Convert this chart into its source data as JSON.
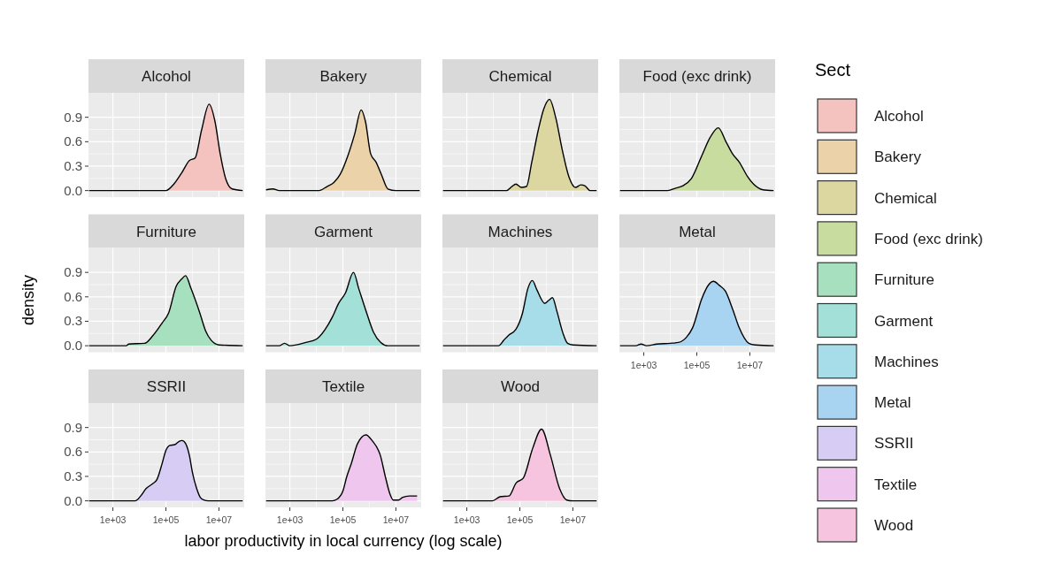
{
  "chart_data": [
    {
      "type": "area",
      "title": "Alcohol",
      "x": [
        126,
        100000,
        200000,
        398000,
        776000,
        1260000,
        2240000,
        4270000,
        7080000,
        11200000,
        17800000,
        31600000,
        79400000
      ],
      "series": [
        {
          "name": "Alcohol",
          "color": "#f4c3c0",
          "values": [
            0,
            0,
            0.08,
            0.22,
            0.37,
            0.4,
            0.75,
            1.06,
            0.85,
            0.45,
            0.15,
            0.02,
            0
          ]
        }
      ],
      "xlim": [
        120,
        90000000
      ],
      "ylim": [
        -0.08,
        1.2
      ],
      "xticks": [
        {
          "value": 1000,
          "label": null
        },
        {
          "value": 100000,
          "label": null
        },
        {
          "value": 10000000,
          "label": null
        }
      ],
      "yticks": [
        {
          "value": 0,
          "label": "0.0"
        },
        0.3,
        0.6,
        0.9
      ],
      "log": "x",
      "grid": true,
      "tick_labels": "y",
      "legend": "right",
      "legend_title": "Sect"
    },
    {
      "type": "area",
      "title": "Bakery",
      "x": [
        126,
        229,
        398,
        12600,
        25100,
        45700,
        79400,
        155000,
        282000,
        490000,
        708000,
        1120000,
        1780000,
        2820000,
        5010000,
        10000000,
        79400000
      ],
      "series": [
        {
          "name": "Bakery",
          "color": "#ecd2a8",
          "values": [
            0.01,
            0.02,
            0,
            0,
            0.05,
            0.1,
            0.2,
            0.43,
            0.7,
            0.99,
            0.85,
            0.45,
            0.35,
            0.2,
            0.02,
            0,
            0
          ]
        }
      ],
      "xlim": [
        120,
        90000000
      ],
      "ylim": [
        -0.08,
        1.2
      ],
      "xticks": [
        {
          "value": 1000,
          "label": null
        },
        {
          "value": 100000,
          "label": null
        },
        {
          "value": 10000000,
          "label": null
        }
      ],
      "yticks": [
        {
          "value": 0,
          "label": null
        },
        {
          "value": 0.3,
          "label": null
        },
        {
          "value": 0.6,
          "label": null
        },
        {
          "value": 0.9,
          "label": null
        }
      ],
      "log": "x",
      "grid": true,
      "tick_labels": false,
      "legend": "right"
    },
    {
      "type": "area",
      "title": "Chemical",
      "x": [
        126,
        31600,
        50100,
        70800,
        112000,
        178000,
        282000,
        501000,
        794000,
        1320000,
        2240000,
        3980000,
        7080000,
        12600000,
        20000000,
        28200000,
        44700000,
        79400000
      ],
      "series": [
        {
          "name": "Chemical",
          "color": "#dcd6a0",
          "values": [
            0,
            0,
            0.05,
            0.08,
            0.04,
            0.05,
            0.35,
            0.75,
            1.0,
            1.12,
            0.9,
            0.5,
            0.17,
            0.04,
            0.07,
            0.06,
            0,
            0
          ]
        }
      ],
      "xlim": [
        120,
        90000000
      ],
      "ylim": [
        -0.08,
        1.2
      ],
      "xticks": [
        {
          "value": 1000,
          "label": null
        },
        {
          "value": 100000,
          "label": null
        },
        {
          "value": 10000000,
          "label": null
        }
      ],
      "yticks": [
        {
          "value": 0,
          "label": null
        },
        {
          "value": 0.3,
          "label": null
        },
        {
          "value": 0.6,
          "label": null
        },
        {
          "value": 0.9,
          "label": null
        }
      ],
      "log": "x",
      "grid": true,
      "tick_labels": false,
      "legend": "right"
    },
    {
      "type": "area",
      "title": "Food (exc drink)",
      "x": [
        126,
        7940,
        15800,
        30200,
        63100,
        155000,
        316000,
        646000,
        1260000,
        2240000,
        3980000,
        7940000,
        13800000,
        31600000,
        79400000
      ],
      "series": [
        {
          "name": "Food (exc drink)",
          "color": "#c8dca0",
          "values": [
            0,
            0,
            0.03,
            0.06,
            0.15,
            0.43,
            0.65,
            0.77,
            0.6,
            0.45,
            0.35,
            0.18,
            0.08,
            0.01,
            0
          ]
        }
      ],
      "xlim": [
        120,
        90000000
      ],
      "ylim": [
        -0.08,
        1.2
      ],
      "xticks": [
        {
          "value": 1000,
          "label": null
        },
        {
          "value": 100000,
          "label": null
        },
        {
          "value": 10000000,
          "label": null
        }
      ],
      "yticks": [
        {
          "value": 0,
          "label": null
        },
        {
          "value": 0.3,
          "label": null
        },
        {
          "value": 0.6,
          "label": null
        },
        {
          "value": 0.9,
          "label": null
        }
      ],
      "log": "x",
      "grid": true,
      "tick_labels": false,
      "legend": "right"
    },
    {
      "type": "area",
      "title": "Furniture",
      "ylabel": "density",
      "x": [
        126,
        3160,
        3980,
        15800,
        31600,
        72400,
        126000,
        245000,
        398000,
        550000,
        891000,
        1910000,
        3160000,
        5010000,
        10000000,
        79400000
      ],
      "series": [
        {
          "name": "Furniture",
          "color": "#a7e0bf",
          "values": [
            0,
            0,
            0.02,
            0.03,
            0.12,
            0.28,
            0.4,
            0.73,
            0.82,
            0.86,
            0.7,
            0.4,
            0.18,
            0.07,
            0.01,
            0
          ]
        }
      ],
      "xlim": [
        120,
        90000000
      ],
      "ylim": [
        -0.08,
        1.2
      ],
      "xticks": [
        {
          "value": 1000,
          "label": null
        },
        {
          "value": 100000,
          "label": null
        },
        {
          "value": 10000000,
          "label": null
        }
      ],
      "yticks": [
        {
          "value": 0,
          "label": "0.0"
        },
        0.3,
        0.6,
        0.9
      ],
      "log": "x",
      "grid": true,
      "tick_labels": "y",
      "legend": "right"
    },
    {
      "type": "area",
      "title": "Garment",
      "x": [
        126,
        398,
        631,
        1000,
        3980,
        10000,
        20400,
        39800,
        69200,
        126000,
        251000,
        398000,
        794000,
        1410000,
        2690000,
        5010000,
        79400000
      ],
      "series": [
        {
          "name": "Garment",
          "color": "#a3e0d7",
          "values": [
            0,
            0,
            0.03,
            0,
            0.04,
            0.08,
            0.19,
            0.35,
            0.52,
            0.65,
            0.9,
            0.7,
            0.4,
            0.17,
            0.04,
            0,
            0
          ]
        }
      ],
      "xlim": [
        120,
        90000000
      ],
      "ylim": [
        -0.08,
        1.2
      ],
      "xticks": [
        {
          "value": 1000,
          "label": null
        },
        {
          "value": 100000,
          "label": null
        },
        {
          "value": 10000000,
          "label": null
        }
      ],
      "yticks": [
        {
          "value": 0,
          "label": null
        },
        {
          "value": 0.3,
          "label": null
        },
        {
          "value": 0.6,
          "label": null
        },
        {
          "value": 0.9,
          "label": null
        }
      ],
      "log": "x",
      "grid": true,
      "tick_labels": false,
      "legend": "right"
    },
    {
      "type": "area",
      "title": "Machines",
      "x": [
        126,
        15800,
        25100,
        38000,
        70800,
        126000,
        200000,
        295000,
        447000,
        871000,
        1260000,
        1700000,
        2510000,
        4170000,
        6310000,
        10000000,
        79400000
      ],
      "series": [
        {
          "name": "Machines",
          "color": "#a6dde8",
          "values": [
            0,
            0,
            0.07,
            0.13,
            0.2,
            0.4,
            0.7,
            0.8,
            0.68,
            0.52,
            0.56,
            0.59,
            0.42,
            0.16,
            0.03,
            0.01,
            0
          ]
        }
      ],
      "xlim": [
        120,
        90000000
      ],
      "ylim": [
        -0.08,
        1.2
      ],
      "xticks": [
        {
          "value": 1000,
          "label": null
        },
        {
          "value": 100000,
          "label": null
        },
        {
          "value": 10000000,
          "label": null
        }
      ],
      "yticks": [
        {
          "value": 0,
          "label": null
        },
        {
          "value": 0.3,
          "label": null
        },
        {
          "value": 0.6,
          "label": null
        },
        {
          "value": 0.9,
          "label": null
        }
      ],
      "log": "x",
      "grid": true,
      "tick_labels": false,
      "legend": "right"
    },
    {
      "type": "area",
      "title": "Metal",
      "x": [
        126,
        501,
        794,
        1260,
        3160,
        10000,
        20400,
        39800,
        69200,
        155000,
        282000,
        427000,
        708000,
        1200000,
        2240000,
        3980000,
        9120000,
        15800000,
        79400000
      ],
      "series": [
        {
          "name": "Metal",
          "color": "#a8d4f2",
          "values": [
            0,
            0,
            0.02,
            0,
            0.02,
            0.03,
            0.04,
            0.1,
            0.22,
            0.58,
            0.75,
            0.79,
            0.74,
            0.67,
            0.45,
            0.22,
            0.03,
            0.01,
            0
          ]
        }
      ],
      "xlim": [
        120,
        90000000
      ],
      "ylim": [
        -0.08,
        1.2
      ],
      "xticks": [
        {
          "value": 1000,
          "label": "1e+03"
        },
        {
          "value": 100000,
          "label": "1e+05"
        },
        {
          "value": 10000000,
          "label": "1e+07"
        }
      ],
      "yticks": [
        {
          "value": 0,
          "label": null
        },
        {
          "value": 0.3,
          "label": null
        },
        {
          "value": 0.6,
          "label": null
        },
        {
          "value": 0.9,
          "label": null
        }
      ],
      "log": "x",
      "grid": true,
      "tick_labels": "x",
      "legend": "right"
    },
    {
      "type": "area",
      "title": "SSRII",
      "x": [
        126,
        6920,
        11200,
        17800,
        31600,
        45700,
        70800,
        100000,
        141000,
        219000,
        316000,
        407000,
        562000,
        776000,
        1000000,
        1450000,
        2000000,
        2690000,
        3980000,
        79400000
      ],
      "series": [
        {
          "name": "SSRII",
          "color": "#d7ccf4",
          "values": [
            0,
            0,
            0.06,
            0.15,
            0.21,
            0.26,
            0.45,
            0.62,
            0.68,
            0.69,
            0.73,
            0.74,
            0.7,
            0.55,
            0.35,
            0.15,
            0.04,
            0.01,
            0,
            0
          ]
        }
      ],
      "xlim": [
        120,
        90000000
      ],
      "ylim": [
        -0.08,
        1.2
      ],
      "xticks": [
        {
          "value": 1000,
          "label": "1e+03"
        },
        {
          "value": 100000,
          "label": "1e+05"
        },
        {
          "value": 10000000,
          "label": "1e+07"
        }
      ],
      "yticks": [
        {
          "value": 0,
          "label": "0.0"
        },
        0.3,
        0.6,
        0.9
      ],
      "log": "x",
      "grid": true,
      "legend": "right"
    },
    {
      "type": "area",
      "title": "Textile",
      "xlabel": "labor productivity in local currency (log scale)",
      "x": [
        126,
        39800,
        60300,
        100000,
        141000,
        209000,
        355000,
        741000,
        1260000,
        2630000,
        3980000,
        6030000,
        7940000,
        12600000,
        17400000,
        32400000,
        63100000
      ],
      "series": [
        {
          "name": "Textile",
          "color": "#efc6ee",
          "values": [
            0,
            0,
            0.02,
            0.12,
            0.3,
            0.46,
            0.7,
            0.81,
            0.74,
            0.55,
            0.3,
            0.08,
            0.01,
            0.01,
            0.04,
            0.06,
            0.06
          ]
        }
      ],
      "xlim": [
        120,
        90000000
      ],
      "ylim": [
        -0.08,
        1.2
      ],
      "xticks": [
        {
          "value": 1000,
          "label": "1e+03"
        },
        {
          "value": 100000,
          "label": "1e+05"
        },
        {
          "value": 10000000,
          "label": "1e+07"
        }
      ],
      "yticks": [
        {
          "value": 0,
          "label": null
        },
        {
          "value": 0.3,
          "label": null
        },
        {
          "value": 0.6,
          "label": null
        },
        {
          "value": 0.9,
          "label": null
        }
      ],
      "log": "x",
      "grid": true,
      "tick_labels": "x",
      "legend": "right"
    },
    {
      "type": "area",
      "title": "Wood",
      "x": [
        126,
        9330,
        17800,
        38900,
        72400,
        135000,
        302000,
        661000,
        1450000,
        3160000,
        5890000,
        10000000,
        79400000
      ],
      "series": [
        {
          "name": "Wood",
          "color": "#f6c4df",
          "values": [
            0,
            0,
            0.05,
            0.06,
            0.22,
            0.28,
            0.64,
            0.88,
            0.55,
            0.15,
            0.01,
            0,
            0
          ]
        }
      ],
      "xlim": [
        120,
        90000000
      ],
      "ylim": [
        -0.08,
        1.2
      ],
      "xticks": [
        {
          "value": 1000,
          "label": "1e+03"
        },
        {
          "value": 100000,
          "label": "1e+05"
        },
        {
          "value": 10000000,
          "label": "1e+07"
        }
      ],
      "yticks": [
        {
          "value": 0,
          "label": null
        },
        {
          "value": 0.3,
          "label": null
        },
        {
          "value": 0.6,
          "label": null
        },
        {
          "value": 0.9,
          "label": null
        }
      ],
      "log": "x",
      "grid": true,
      "tick_labels": "x",
      "legend": "right"
    }
  ]
}
